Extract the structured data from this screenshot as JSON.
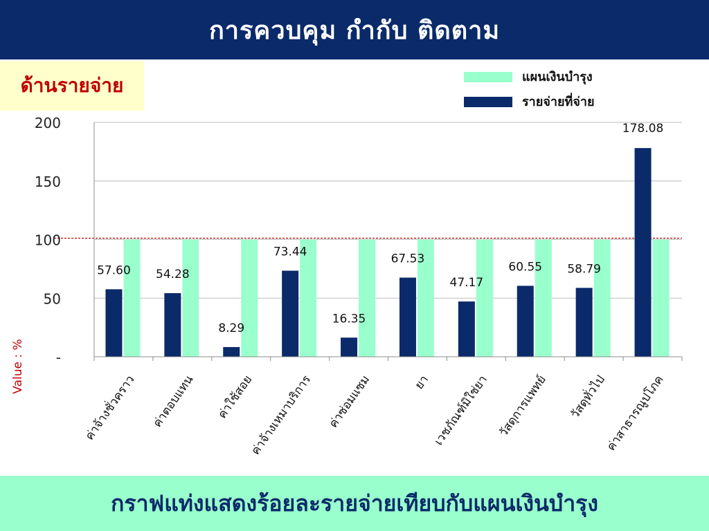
{
  "header": {
    "title": "การควบคุม กำกับ ติดตาม"
  },
  "section": {
    "label": "ด้านรายจ่าย"
  },
  "footer": {
    "caption": "กราฟแท่งแสดงร้อยละรายจ่ายเทียบกับแผนเงินบำรุง"
  },
  "colors": {
    "header_bg": "#0b2a6a",
    "plan": "#99ffcc",
    "actual": "#0b2a6a",
    "threshold": "#c00000"
  },
  "chart_data": {
    "type": "bar",
    "ylabel": "Value : %",
    "ylim": [
      0,
      200
    ],
    "yticks": [
      {
        "value": 0,
        "label": "-"
      },
      {
        "value": 50,
        "label": "50"
      },
      {
        "value": 100,
        "label": "100"
      },
      {
        "value": 150,
        "label": "150"
      },
      {
        "value": 200,
        "label": "200"
      }
    ],
    "grid": true,
    "legend": "top-right",
    "reference_line": 100,
    "categories": [
      "ค่าจ้างชั่วคราว",
      "ค่าตอบแทน",
      "ค่าใช้สอย",
      "ค่าจ้างเหมาบริการ",
      "ค่าซ่อมแซม",
      "ยา",
      "เวชภัณฑ์มิใช่ยา",
      "วัสดุการแพทย์",
      "วัสดุทั่วไป",
      "ค่าสาธารณูปโภค"
    ],
    "series": [
      {
        "name": "แผนเงินบำรุง",
        "values": [
          100,
          100,
          100,
          100,
          100,
          100,
          100,
          100,
          100,
          100
        ]
      },
      {
        "name": "รายจ่ายที่จ่าย",
        "values": [
          57.6,
          54.28,
          8.29,
          73.44,
          16.35,
          67.53,
          47.17,
          60.55,
          58.79,
          178.08
        ],
        "labels": [
          "57.60",
          "54.28",
          "8.29",
          "73.44",
          "16.35",
          "67.53",
          "47.17",
          "60.55",
          "58.79",
          "178.08"
        ]
      }
    ]
  }
}
